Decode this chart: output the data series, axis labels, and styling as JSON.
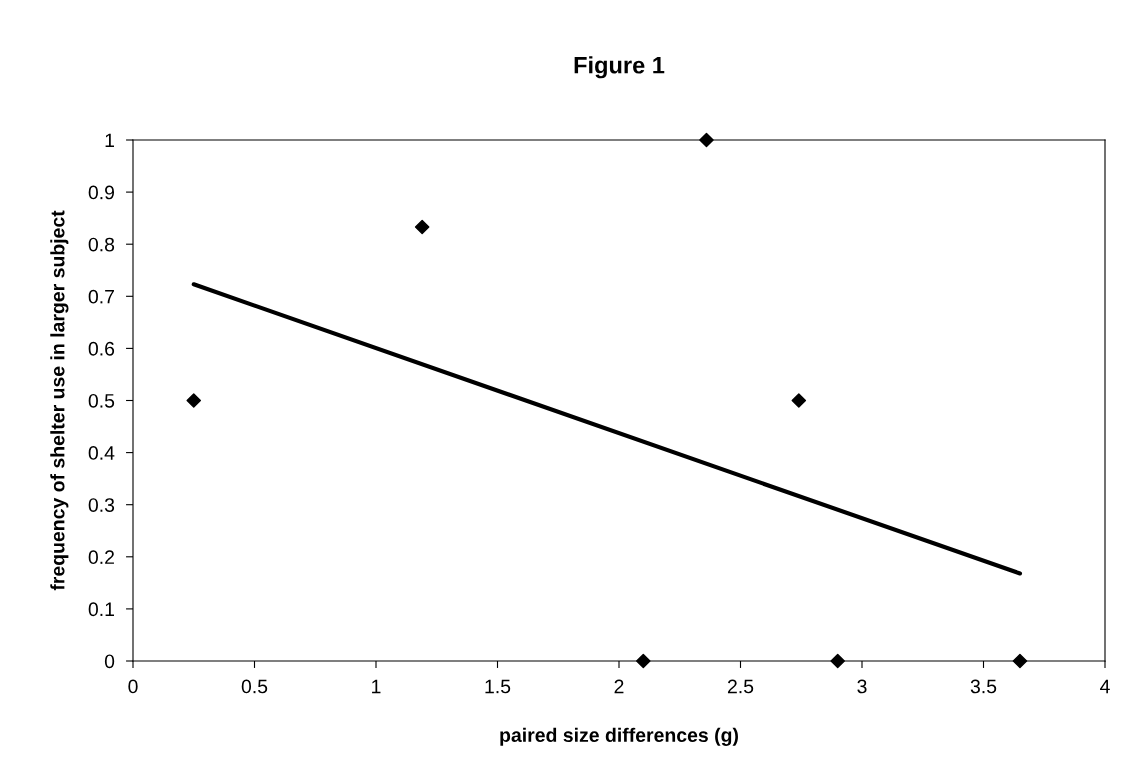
{
  "chart_data": {
    "type": "scatter",
    "title": "Figure 1",
    "xlabel": "paired size differences (g)",
    "ylabel": "frequency of shelter use in larger subject",
    "xlim": [
      0,
      4
    ],
    "xticks": [
      0,
      0.5,
      1,
      1.5,
      2,
      2.5,
      3,
      3.5,
      4
    ],
    "ylim": [
      0,
      1
    ],
    "yticks": [
      0,
      0.1,
      0.2,
      0.3,
      0.4,
      0.5,
      0.6,
      0.7,
      0.8,
      0.9,
      1
    ],
    "grid": false,
    "legend": false,
    "marker": "diamond",
    "series": [
      {
        "color": "#000000",
        "x": [
          0.25,
          1.19,
          2.1,
          2.36,
          2.74,
          2.9,
          3.65
        ],
        "values": [
          0.5,
          0.833,
          0,
          1,
          0.5,
          0,
          0
        ]
      },
      {
        "type": "line",
        "marker": "none",
        "color": "#000000",
        "x": [
          0.25,
          3.65
        ],
        "values": [
          0.723,
          0.168
        ]
      }
    ]
  }
}
